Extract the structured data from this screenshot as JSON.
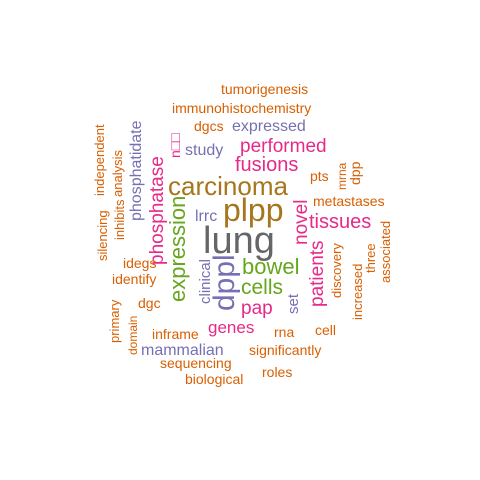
{
  "palette": {
    "orange": "#d95f02",
    "purple": "#7570b3",
    "magenta": "#e7298a",
    "green": "#66a61e",
    "brown": "#a6761d",
    "gray": "#666666"
  },
  "words": [
    {
      "id": "lung",
      "text": "lung",
      "color": "gray"
    },
    {
      "id": "plpp",
      "text": "plpp",
      "color": "brown"
    },
    {
      "id": "carcinoma",
      "text": "carcinoma",
      "color": "brown"
    },
    {
      "id": "dppl",
      "text": "dppl",
      "color": "purple"
    },
    {
      "id": "expression",
      "text": "expression",
      "color": "green"
    },
    {
      "id": "bowel",
      "text": "bowel",
      "color": "green"
    },
    {
      "id": "cells",
      "text": "cells",
      "color": "green"
    },
    {
      "id": "fusions",
      "text": "fusions",
      "color": "magenta"
    },
    {
      "id": "performed",
      "text": "performed",
      "color": "magenta"
    },
    {
      "id": "tissues",
      "text": "tissues",
      "color": "magenta"
    },
    {
      "id": "patients",
      "text": "patients",
      "color": "magenta"
    },
    {
      "id": "novel",
      "text": "novel",
      "color": "magenta"
    },
    {
      "id": "phosphatase",
      "text": "phosphatase",
      "color": "magenta"
    },
    {
      "id": "pap",
      "text": "pap",
      "color": "magenta"
    },
    {
      "id": "genes",
      "text": "genes",
      "color": "magenta"
    },
    {
      "id": "n-glyph",
      "text": "n□□",
      "color": "magenta"
    },
    {
      "id": "phosphatidate",
      "text": "phosphatidate",
      "color": "purple"
    },
    {
      "id": "expressed",
      "text": "expressed",
      "color": "purple"
    },
    {
      "id": "study",
      "text": "study",
      "color": "purple"
    },
    {
      "id": "lrrc",
      "text": "lrrc",
      "color": "purple"
    },
    {
      "id": "clinical",
      "text": "clinical",
      "color": "purple"
    },
    {
      "id": "set",
      "text": "set",
      "color": "purple"
    },
    {
      "id": "mammalian",
      "text": "mammalian",
      "color": "purple"
    },
    {
      "id": "tumorigenesis",
      "text": "tumorigenesis",
      "color": "orange"
    },
    {
      "id": "immunohistochemistry",
      "text": "immunohistochemistry",
      "color": "orange"
    },
    {
      "id": "dgcs",
      "text": "dgcs",
      "color": "orange"
    },
    {
      "id": "independent",
      "text": "independent",
      "color": "orange"
    },
    {
      "id": "analysis",
      "text": "analysis",
      "color": "orange"
    },
    {
      "id": "inhibits",
      "text": "inhibits",
      "color": "orange"
    },
    {
      "id": "silencing",
      "text": "silencing",
      "color": "orange"
    },
    {
      "id": "idegs",
      "text": "idegs",
      "color": "orange"
    },
    {
      "id": "identify",
      "text": "identify",
      "color": "orange"
    },
    {
      "id": "primary",
      "text": "primary",
      "color": "orange"
    },
    {
      "id": "domain",
      "text": "domain",
      "color": "orange"
    },
    {
      "id": "dgc",
      "text": "dgc",
      "color": "orange"
    },
    {
      "id": "inframe",
      "text": "inframe",
      "color": "orange"
    },
    {
      "id": "sequencing",
      "text": "sequencing",
      "color": "orange"
    },
    {
      "id": "biological",
      "text": "biological",
      "color": "orange"
    },
    {
      "id": "roles",
      "text": "roles",
      "color": "orange"
    },
    {
      "id": "significantly",
      "text": "significantly",
      "color": "orange"
    },
    {
      "id": "rna",
      "text": "rna",
      "color": "orange"
    },
    {
      "id": "cell",
      "text": "cell",
      "color": "orange"
    },
    {
      "id": "increased",
      "text": "increased",
      "color": "orange"
    },
    {
      "id": "discovery",
      "text": "discovery",
      "color": "orange"
    },
    {
      "id": "three",
      "text": "three",
      "color": "orange"
    },
    {
      "id": "associated",
      "text": "associated",
      "color": "orange"
    },
    {
      "id": "metastases",
      "text": "metastases",
      "color": "orange"
    },
    {
      "id": "pts",
      "text": "pts",
      "color": "orange"
    },
    {
      "id": "mrna",
      "text": "mrna",
      "color": "orange"
    },
    {
      "id": "dpp",
      "text": "dpp",
      "color": "orange"
    }
  ]
}
